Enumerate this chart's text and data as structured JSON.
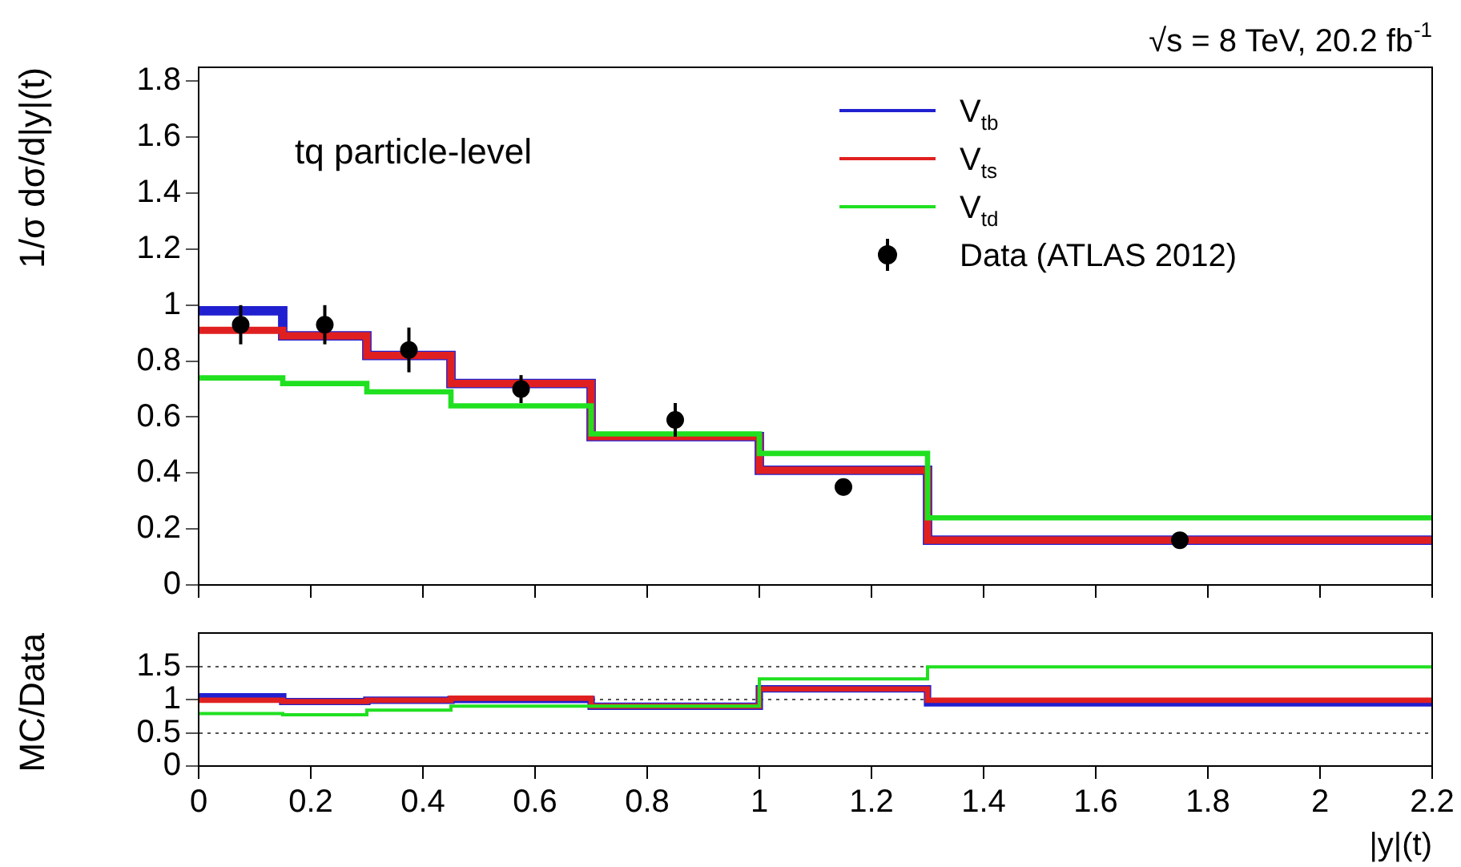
{
  "chart_data": [
    {
      "type": "step",
      "ylabel": "1/σ dσ/d|y|(t)",
      "annotations": [
        "√s = 8 TeV, 20.2 fb$^{-1}$",
        "tq particle-level"
      ],
      "x": [
        0,
        0.15,
        0.3,
        0.45,
        0.7,
        1.0,
        1.3,
        2.2
      ],
      "xlim": [
        0,
        2.2
      ],
      "xticks": [
        0,
        0.2,
        0.4,
        0.6,
        0.8,
        1,
        1.2,
        1.4,
        1.6,
        1.8,
        2,
        2.2
      ],
      "ylim": [
        0,
        1.85
      ],
      "yticks": [
        0,
        0.2,
        0.4,
        0.6,
        0.8,
        1,
        1.2,
        1.4,
        1.6,
        1.8
      ],
      "tick_labels": "y",
      "legend": "top right",
      "series": [
        {
          "name": "V$_{tb}$",
          "color": "#2020d0",
          "values": [
            0.98,
            0.89,
            0.82,
            0.72,
            0.53,
            0.41,
            0.16,
            0.16
          ]
        },
        {
          "name": "V$_{ts}$",
          "color": "#e02020",
          "values": [
            0.91,
            0.89,
            0.82,
            0.72,
            0.53,
            0.41,
            0.16,
            0.16
          ]
        },
        {
          "name": "V$_{td}$",
          "color": "#20e020",
          "values": [
            0.74,
            0.72,
            0.69,
            0.64,
            0.54,
            0.47,
            0.24,
            0.24
          ]
        },
        {
          "name": "Data (ATLAS 2012)",
          "type": "scatter",
          "marker": "circle",
          "color": "#000000",
          "x": [
            0.075,
            0.225,
            0.375,
            0.575,
            0.85,
            1.15,
            1.75
          ],
          "values": [
            0.93,
            0.93,
            0.84,
            0.7,
            0.59,
            0.35,
            0.16
          ],
          "errors": [
            0.07,
            0.07,
            0.08,
            0.05,
            0.06,
            0.03,
            0.01
          ]
        }
      ]
    },
    {
      "type": "step",
      "xlabel": "|y|(t)",
      "ylabel": "MC/Data",
      "x": [
        0,
        0.15,
        0.3,
        0.45,
        0.7,
        1.0,
        1.3,
        2.2
      ],
      "xlim": [
        0,
        2.2
      ],
      "xticks": [
        0,
        0.2,
        0.4,
        0.6,
        0.8,
        1,
        1.2,
        1.4,
        1.6,
        1.8,
        2,
        2.2
      ],
      "ylim": [
        0,
        2
      ],
      "yticks": [
        0,
        0.5,
        1,
        1.5
      ],
      "grid": "y",
      "series": [
        {
          "color": "#2020d0",
          "values": [
            1.04,
            0.97,
            0.99,
            1.0,
            0.9,
            1.16,
            0.95,
            0.95
          ]
        },
        {
          "color": "#e02020",
          "values": [
            0.99,
            0.97,
            0.99,
            1.02,
            0.9,
            1.16,
            0.99,
            0.99
          ]
        },
        {
          "color": "#20e020",
          "values": [
            0.79,
            0.77,
            0.84,
            0.9,
            0.9,
            1.31,
            1.49,
            1.49
          ]
        }
      ]
    }
  ]
}
